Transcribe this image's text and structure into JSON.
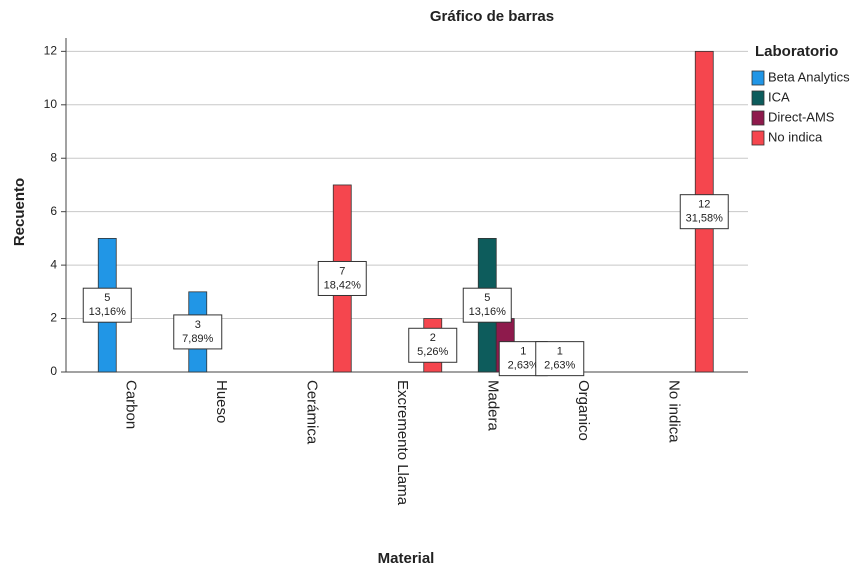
{
  "chart_data": {
    "type": "bar",
    "title": "Gráfico de barras",
    "x_label": "Material",
    "y_label": "Recuento",
    "legend_title": "Laboratorio",
    "legend_position": "right",
    "categories": [
      "Carbon",
      "Hueso",
      "Cerámica",
      "Excremento Llama",
      "Madera",
      "Organico",
      "No indica"
    ],
    "series": [
      {
        "name": "Beta Analytics",
        "color": "#2196e6",
        "values": [
          5,
          3,
          null,
          null,
          null,
          1,
          null
        ],
        "percent_labels": [
          "13,16%",
          "7,89%",
          null,
          null,
          null,
          "2,63%",
          null
        ]
      },
      {
        "name": "ICA",
        "color": "#0d5c5c",
        "values": [
          null,
          null,
          null,
          null,
          5,
          null,
          null
        ],
        "percent_labels": [
          null,
          null,
          null,
          null,
          "13,16%",
          null,
          null
        ]
      },
      {
        "name": "Direct-AMS",
        "color": "#8e1a4c",
        "values": [
          null,
          null,
          null,
          null,
          2,
          null,
          null
        ],
        "percent_labels": [
          null,
          null,
          null,
          null,
          null,
          null,
          null
        ]
      },
      {
        "name": "No indica",
        "color": "#f5464e",
        "values": [
          null,
          null,
          7,
          2,
          1,
          null,
          12
        ],
        "percent_labels": [
          null,
          null,
          "18,42%",
          "5,26%",
          "2,63%",
          null,
          "31,58%"
        ]
      }
    ],
    "ylim": [
      0,
      12.5
    ],
    "yticks": [
      0,
      2,
      4,
      6,
      8,
      10,
      12
    ],
    "grid": true
  }
}
